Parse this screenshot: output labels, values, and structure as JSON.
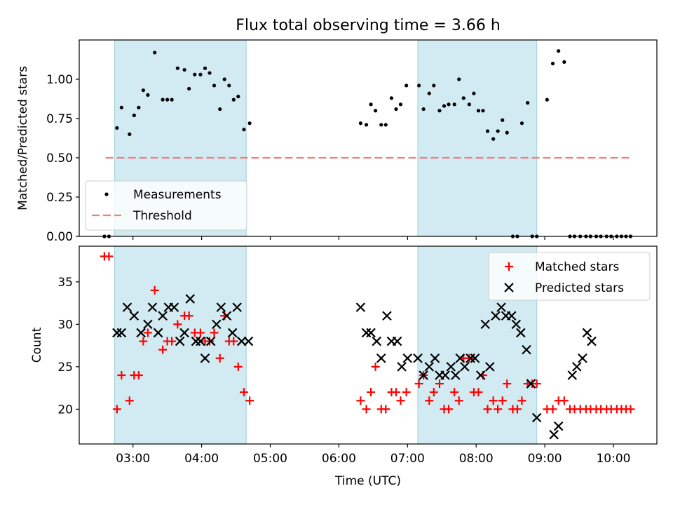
{
  "chart_data": [
    {
      "type": "scatter",
      "title": "Flux total observing time = 3.66 h",
      "xlabel": "",
      "ylabel": "Matched/Predicted stars",
      "xlim": [
        "02:13",
        "10:38"
      ],
      "ylim": [
        0,
        1.25
      ],
      "yticks": [
        0.0,
        0.25,
        0.5,
        0.75,
        1.0
      ],
      "ytick_labels": [
        "0.00",
        "0.25",
        "0.50",
        "0.75",
        "1.00"
      ],
      "shaded_intervals": [
        [
          "02:44",
          "04:39"
        ],
        [
          "07:09",
          "08:53"
        ]
      ],
      "shade_color": "#add8e6",
      "legend_position": "lower-left",
      "legend": [
        {
          "label": "Measurements",
          "marker": "dot",
          "color": "#000000"
        },
        {
          "label": "Threshold",
          "marker": "dashed-line",
          "color": "#f08080"
        }
      ],
      "threshold": {
        "value": 0.5,
        "x_start": "02:36",
        "x_end": "10:15",
        "color": "#f08080"
      },
      "series": [
        {
          "name": "Measurements",
          "color": "#000000",
          "x": [
            "02:35",
            "02:39",
            "02:46",
            "02:50",
            "02:57",
            "03:01",
            "03:05",
            "03:09",
            "03:13",
            "03:19",
            "03:26",
            "03:30",
            "03:34",
            "03:39",
            "03:45",
            "03:49",
            "03:54",
            "03:59",
            "04:03",
            "04:07",
            "04:11",
            "04:16",
            "04:20",
            "04:24",
            "04:28",
            "04:32",
            "04:37",
            "04:42",
            "06:19",
            "06:24",
            "06:28",
            "06:32",
            "06:37",
            "06:41",
            "06:46",
            "06:50",
            "06:54",
            "06:59",
            "07:10",
            "07:14",
            "07:19",
            "07:23",
            "07:28",
            "07:32",
            "07:36",
            "07:41",
            "07:45",
            "07:49",
            "07:54",
            "07:58",
            "08:02",
            "08:06",
            "08:10",
            "08:15",
            "08:19",
            "08:23",
            "08:27",
            "08:32",
            "08:36",
            "08:40",
            "08:45",
            "08:49",
            "08:53",
            "09:02",
            "09:07",
            "09:12",
            "09:17",
            "09:22",
            "09:26",
            "09:31",
            "09:36",
            "09:40",
            "09:45",
            "09:49",
            "09:54",
            "09:58",
            "10:03",
            "10:07",
            "10:11",
            "10:15"
          ],
          "y": [
            0.0,
            0.0,
            0.69,
            0.82,
            0.65,
            0.77,
            0.82,
            0.93,
            0.9,
            1.17,
            0.87,
            0.87,
            0.87,
            1.07,
            1.06,
            0.94,
            1.03,
            1.03,
            1.07,
            1.04,
            0.96,
            0.81,
            1.0,
            0.96,
            0.87,
            0.89,
            0.68,
            0.72,
            0.72,
            0.71,
            0.84,
            0.8,
            0.71,
            0.71,
            0.88,
            0.81,
            0.84,
            0.96,
            0.96,
            0.81,
            0.91,
            0.96,
            0.8,
            0.83,
            0.84,
            0.84,
            1.0,
            0.88,
            0.84,
            0.91,
            0.8,
            0.8,
            0.67,
            0.62,
            0.67,
            0.74,
            0.66,
            0.0,
            0.0,
            0.72,
            0.85,
            0.0,
            0.0,
            0.87,
            1.1,
            1.18,
            1.11,
            0.0,
            0.0,
            0.0,
            0.0,
            0.0,
            0.0,
            0.0,
            0.0,
            0.0,
            0.0,
            0.0,
            0.0,
            0.0
          ]
        }
      ]
    },
    {
      "type": "scatter",
      "title": "",
      "xlabel": "Time (UTC)",
      "ylabel": "Count",
      "xlim": [
        "02:13",
        "10:38"
      ],
      "ylim": [
        15.9,
        39.2
      ],
      "yticks": [
        20,
        25,
        30,
        35
      ],
      "xticks": [
        "03:00",
        "04:00",
        "05:00",
        "06:00",
        "07:00",
        "08:00",
        "09:00",
        "10:00"
      ],
      "shaded_intervals": [
        [
          "02:44",
          "04:39"
        ],
        [
          "07:09",
          "08:53"
        ]
      ],
      "shade_color": "#add8e6",
      "legend_position": "upper-right",
      "legend": [
        {
          "label": "Matched stars",
          "marker": "plus",
          "color": "#ff0000"
        },
        {
          "label": "Predicted stars",
          "marker": "x",
          "color": "#000000"
        }
      ],
      "series": [
        {
          "name": "Matched stars",
          "marker": "plus",
          "color": "#ff0000",
          "x": [
            "02:35",
            "02:39",
            "02:46",
            "02:50",
            "02:57",
            "03:01",
            "03:05",
            "03:09",
            "03:13",
            "03:19",
            "03:26",
            "03:30",
            "03:34",
            "03:39",
            "03:45",
            "03:49",
            "03:54",
            "03:59",
            "04:03",
            "04:07",
            "04:11",
            "04:16",
            "04:20",
            "04:24",
            "04:28",
            "04:32",
            "04:37",
            "04:42",
            "06:19",
            "06:24",
            "06:28",
            "06:32",
            "06:37",
            "06:41",
            "06:46",
            "06:50",
            "06:54",
            "06:59",
            "07:10",
            "07:14",
            "07:19",
            "07:23",
            "07:28",
            "07:32",
            "07:36",
            "07:41",
            "07:45",
            "07:49",
            "07:54",
            "07:58",
            "08:02",
            "08:06",
            "08:10",
            "08:15",
            "08:19",
            "08:23",
            "08:27",
            "08:32",
            "08:36",
            "08:40",
            "08:45",
            "08:49",
            "08:53",
            "09:02",
            "09:07",
            "09:12",
            "09:17",
            "09:22",
            "09:26",
            "09:31",
            "09:36",
            "09:40",
            "09:45",
            "09:49",
            "09:54",
            "09:58",
            "10:03",
            "10:07",
            "10:11",
            "10:15"
          ],
          "y": [
            38,
            38,
            20,
            24,
            21,
            24,
            24,
            28,
            29,
            34,
            27,
            28,
            28,
            30,
            31,
            31,
            29,
            29,
            28,
            28,
            29,
            26,
            31,
            28,
            28,
            25,
            22,
            21,
            21,
            20,
            22,
            25,
            20,
            20,
            22,
            22,
            21,
            22,
            23,
            24,
            21,
            22,
            23,
            20,
            20,
            22,
            21,
            26,
            26,
            22,
            22,
            24,
            20,
            21,
            20,
            21,
            23,
            20,
            20,
            21,
            23,
            23,
            23,
            20,
            20,
            21,
            21,
            20,
            20,
            20,
            20,
            20,
            20,
            20,
            20,
            20,
            20,
            20,
            20,
            20
          ]
        },
        {
          "name": "Predicted stars",
          "marker": "x",
          "color": "#000000",
          "x": [
            "02:46",
            "02:50",
            "02:55",
            "03:01",
            "03:07",
            "03:13",
            "03:17",
            "03:22",
            "03:26",
            "03:31",
            "03:36",
            "03:41",
            "03:45",
            "03:50",
            "03:55",
            "03:59",
            "04:03",
            "04:08",
            "04:13",
            "04:17",
            "04:22",
            "04:27",
            "04:31",
            "04:35",
            "04:41",
            "06:19",
            "06:24",
            "06:28",
            "06:33",
            "06:37",
            "06:42",
            "06:46",
            "06:51",
            "06:55",
            "07:00",
            "07:09",
            "07:14",
            "07:19",
            "07:24",
            "07:28",
            "07:33",
            "07:38",
            "07:42",
            "07:46",
            "07:50",
            "07:55",
            "07:59",
            "08:04",
            "08:08",
            "08:12",
            "08:17",
            "08:22",
            "08:26",
            "08:31",
            "08:35",
            "08:39",
            "08:44",
            "08:48",
            "08:53",
            "09:08",
            "09:12",
            "09:24",
            "09:28",
            "09:33",
            "09:37",
            "09:41"
          ],
          "y": [
            29,
            29,
            32,
            31,
            29,
            30,
            32,
            29,
            31,
            32,
            32,
            28,
            29,
            33,
            28,
            28,
            26,
            28,
            30,
            32,
            31,
            29,
            32,
            28,
            28,
            32,
            29,
            29,
            28,
            26,
            31,
            28,
            28,
            25,
            26,
            26,
            24,
            25,
            26,
            24,
            24,
            25,
            24,
            26,
            25,
            26,
            26,
            24,
            30,
            25,
            31,
            32,
            31,
            31,
            30,
            29,
            27,
            23,
            19,
            17,
            18,
            24,
            25,
            26,
            29,
            28
          ]
        }
      ]
    }
  ]
}
